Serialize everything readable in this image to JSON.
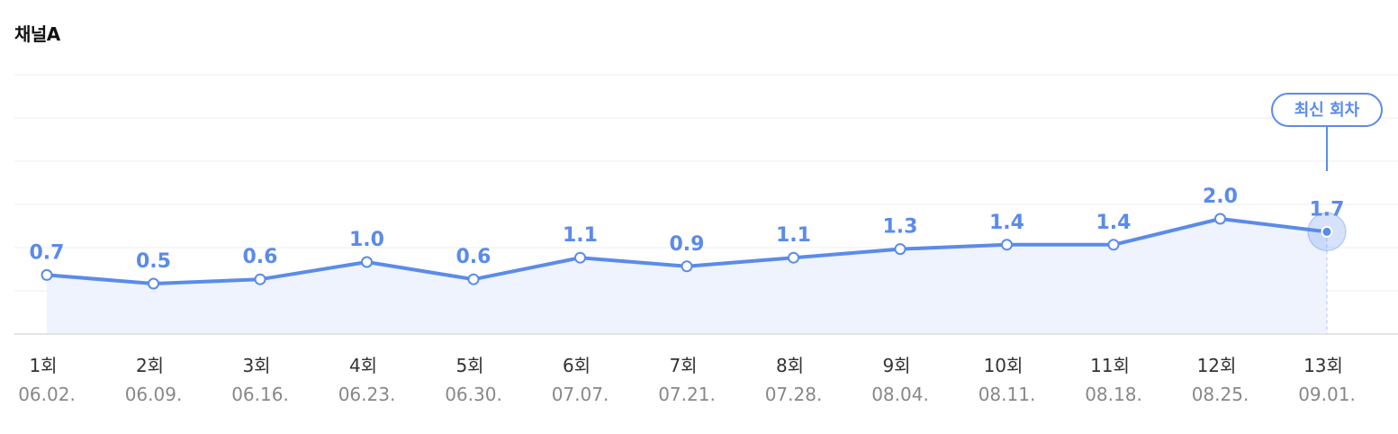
{
  "chart_data": {
    "type": "line",
    "title": "채널A",
    "categories": [
      "1회",
      "2회",
      "3회",
      "4회",
      "5회",
      "6회",
      "7회",
      "8회",
      "9회",
      "10회",
      "11회",
      "12회",
      "13회"
    ],
    "dates": [
      "06.02.",
      "06.09.",
      "06.16.",
      "06.23.",
      "06.30.",
      "07.07.",
      "07.21.",
      "07.28.",
      "08.04.",
      "08.11.",
      "08.18.",
      "08.25.",
      "09.01."
    ],
    "values": [
      0.7,
      0.5,
      0.6,
      1.0,
      0.6,
      1.1,
      0.9,
      1.1,
      1.3,
      1.4,
      1.4,
      2.0,
      1.7
    ],
    "value_labels": [
      "0.7",
      "0.5",
      "0.6",
      "1.0",
      "0.6",
      "1.1",
      "0.9",
      "1.1",
      "1.3",
      "1.4",
      "1.4",
      "2.0",
      "1.7"
    ],
    "annotation": "최신 회차",
    "annotation_index": 12,
    "line_color": "#5b8bea",
    "area_color": "#eef3fd",
    "grid": true
  }
}
